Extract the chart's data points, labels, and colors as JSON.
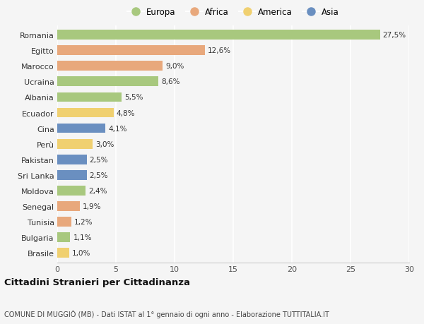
{
  "countries": [
    "Romania",
    "Egitto",
    "Marocco",
    "Ucraina",
    "Albania",
    "Ecuador",
    "Cina",
    "Perù",
    "Pakistan",
    "Sri Lanka",
    "Moldova",
    "Senegal",
    "Tunisia",
    "Bulgaria",
    "Brasile"
  ],
  "values": [
    27.5,
    12.6,
    9.0,
    8.6,
    5.5,
    4.8,
    4.1,
    3.0,
    2.5,
    2.5,
    2.4,
    1.9,
    1.2,
    1.1,
    1.0
  ],
  "labels": [
    "27,5%",
    "12,6%",
    "9,0%",
    "8,6%",
    "5,5%",
    "4,8%",
    "4,1%",
    "3,0%",
    "2,5%",
    "2,5%",
    "2,4%",
    "1,9%",
    "1,2%",
    "1,1%",
    "1,0%"
  ],
  "continents": [
    "Europa",
    "Africa",
    "Africa",
    "Europa",
    "Europa",
    "America",
    "Asia",
    "America",
    "Asia",
    "Asia",
    "Europa",
    "Africa",
    "Africa",
    "Europa",
    "America"
  ],
  "colors": {
    "Europa": "#a8c87e",
    "Africa": "#e8a87c",
    "America": "#f0d070",
    "Asia": "#6a8fc0"
  },
  "legend_order": [
    "Europa",
    "Africa",
    "America",
    "Asia"
  ],
  "bg_color": "#f5f5f5",
  "title": "Cittadini Stranieri per Cittadinanza",
  "subtitle": "COMUNE DI MUGGIÒ (MB) - Dati ISTAT al 1° gennaio di ogni anno - Elaborazione TUTTITALIA.IT",
  "xlim": [
    0,
    30
  ],
  "xticks": [
    0,
    5,
    10,
    15,
    20,
    25,
    30
  ],
  "bar_height": 0.62,
  "label_fontsize": 7.5,
  "ytick_fontsize": 8.0,
  "xtick_fontsize": 8.0,
  "legend_fontsize": 8.5,
  "title_fontsize": 9.5,
  "subtitle_fontsize": 7.0
}
